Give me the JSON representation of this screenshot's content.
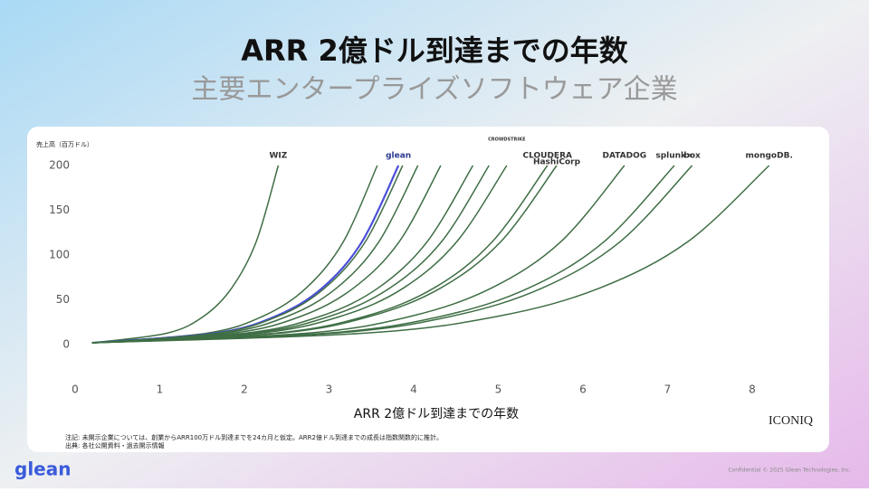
{
  "header": {
    "title": "ARR 2億ドル到達までの年数",
    "subtitle": "主要エンタープライズソフトウェア企業"
  },
  "chart_data": {
    "type": "line",
    "ylabel": "売上高（百万ドル）",
    "xlabel": "ARR 2億ドル到達までの年数",
    "xlim": [
      0,
      8
    ],
    "ylim": [
      0,
      200
    ],
    "xticks": [
      0,
      1,
      2,
      3,
      4,
      5,
      6,
      7,
      8
    ],
    "yticks": [
      0,
      50,
      100,
      150,
      200
    ],
    "grid": false,
    "series": [
      {
        "name": "WIZ",
        "color": "#3f6e45",
        "x": [
          0.2,
          1.08,
          1.52,
          1.85,
          2.14,
          2.4
        ],
        "values": [
          2,
          12.6,
          31.7,
          63.2,
          115,
          200
        ]
      },
      {
        "name": null,
        "color": "#3f6e45",
        "x": [
          0.2,
          1.55,
          2.22,
          2.73,
          3.17,
          3.57
        ],
        "values": [
          2,
          12.6,
          31.7,
          63.2,
          115,
          200
        ]
      },
      {
        "name": "glean",
        "color": "#4b4fd8",
        "x": [
          0.2,
          1.65,
          2.37,
          2.92,
          3.39,
          3.82
        ],
        "values": [
          2,
          12.6,
          31.7,
          63.2,
          115,
          200
        ]
      },
      {
        "name": null,
        "color": "#3f6e45",
        "x": [
          0.2,
          1.67,
          2.4,
          2.95,
          3.43,
          3.87
        ],
        "values": [
          2,
          12.6,
          31.7,
          63.2,
          115,
          200
        ]
      },
      {
        "name": null,
        "color": "#3f6e45",
        "x": [
          0.2,
          1.74,
          2.51,
          3.09,
          3.59,
          4.05
        ],
        "values": [
          2,
          12.6,
          31.7,
          63.2,
          115,
          200
        ]
      },
      {
        "name": null,
        "color": "#3f6e45",
        "x": [
          0.2,
          1.85,
          2.67,
          3.29,
          3.83,
          4.32
        ],
        "values": [
          2,
          12.6,
          31.7,
          63.2,
          115,
          200
        ]
      },
      {
        "name": null,
        "color": "#3f6e45",
        "x": [
          0.2,
          2.0,
          2.9,
          3.58,
          4.16,
          4.7
        ],
        "values": [
          2,
          12.6,
          31.7,
          63.2,
          115,
          200
        ]
      },
      {
        "name": null,
        "color": "#3f6e45",
        "x": [
          0.2,
          2.08,
          3.01,
          3.72,
          4.33,
          4.89
        ],
        "values": [
          2,
          12.6,
          31.7,
          63.2,
          115,
          200
        ]
      },
      {
        "name": "CROWDSTRIKE",
        "color": "#3f6e45",
        "x": [
          0.2,
          2.16,
          3.14,
          3.88,
          4.51,
          5.1
        ],
        "values": [
          2,
          12.6,
          31.7,
          63.2,
          115,
          200
        ]
      },
      {
        "name": "CLOUDERA",
        "color": "#3f6e45",
        "x": [
          0.2,
          2.35,
          3.43,
          4.24,
          4.93,
          5.58
        ],
        "values": [
          2,
          12.6,
          31.7,
          63.2,
          115,
          200
        ]
      },
      {
        "name": "HashiCorp",
        "color": "#3f6e45",
        "x": [
          0.2,
          2.4,
          3.49,
          4.32,
          5.03,
          5.69
        ],
        "values": [
          2,
          12.6,
          31.7,
          63.2,
          115,
          200
        ]
      },
      {
        "name": "DATADOG",
        "color": "#3f6e45",
        "x": [
          0.2,
          2.72,
          3.97,
          4.92,
          5.74,
          6.49
        ],
        "values": [
          2,
          12.6,
          31.7,
          63.2,
          115,
          200
        ]
      },
      {
        "name": "splunk>",
        "color": "#3f6e45",
        "x": [
          0.2,
          2.95,
          4.33,
          5.36,
          6.25,
          7.08
        ],
        "values": [
          2,
          12.6,
          31.7,
          63.2,
          115,
          200
        ]
      },
      {
        "name": "box",
        "color": "#3f6e45",
        "x": [
          0.2,
          3.04,
          4.45,
          5.52,
          6.44,
          7.29
        ],
        "values": [
          2,
          12.6,
          31.7,
          63.2,
          115,
          200
        ]
      },
      {
        "name": "mongoDB.",
        "color": "#3f6e45",
        "x": [
          0.2,
          3.4,
          5.0,
          6.2,
          7.24,
          8.2
        ],
        "values": [
          2,
          12.6,
          31.7,
          63.2,
          115,
          200
        ]
      }
    ]
  },
  "notes": [
    "注記: 未開示企業については、創業からARR100万ドル到達までを24カ月と仮定。ARR2億ドル到達までの成長は指数関数的に推計。",
    "出典: 各社公開資料・過去開示情報"
  ],
  "source_brand": "ICONIQ",
  "footer": {
    "logo": "glean",
    "confidential": "Confidential © 2025 Glean Technologies, Inc."
  }
}
